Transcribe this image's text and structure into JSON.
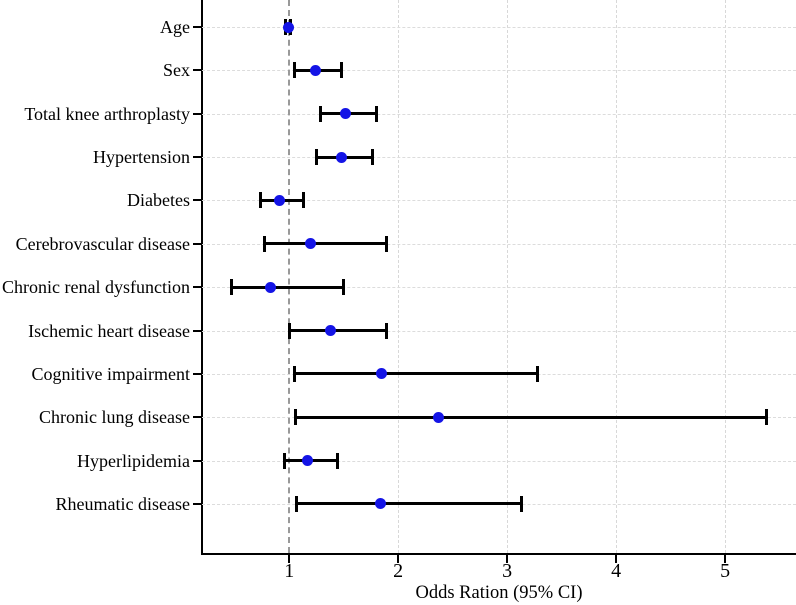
{
  "figure": {
    "background": "#ffffff"
  },
  "chart_data": {
    "type": "scatter",
    "subtype": "forest-plot",
    "title": "",
    "xlabel": "Odds Ration (95% CI)",
    "ylabel": "",
    "xlim": [
      0.2,
      5.65
    ],
    "x_ticks": [
      "1",
      "2",
      "3",
      "4",
      "5"
    ],
    "x_tick_values": [
      1,
      2,
      3,
      4,
      5
    ],
    "reference_line_x": 1,
    "grid": true,
    "legend": "none",
    "categories": [
      "Age",
      "Sex",
      "Total knee arthroplasty",
      "Hypertension",
      "Diabetes",
      "Cerebrovascular disease",
      "Chronic renal dysfunction",
      "Ischemic heart disease",
      "Cognitive impairment",
      "Chronic lung disease",
      "Hyperlipidemia",
      "Rheumatic disease"
    ],
    "series": [
      {
        "name": "Odds Ratio (95% CI)",
        "marker": "circle",
        "points": [
          {
            "label": "Age",
            "or": 0.99,
            "ci_low": 0.97,
            "ci_high": 1.01
          },
          {
            "label": "Sex",
            "or": 1.24,
            "ci_low": 1.05,
            "ci_high": 1.48
          },
          {
            "label": "Total knee arthroplasty",
            "or": 1.52,
            "ci_low": 1.29,
            "ci_high": 1.8
          },
          {
            "label": "Hypertension",
            "or": 1.48,
            "ci_low": 1.25,
            "ci_high": 1.76
          },
          {
            "label": "Diabetes",
            "or": 0.91,
            "ci_low": 0.74,
            "ci_high": 1.13
          },
          {
            "label": "Cerebrovascular disease",
            "or": 1.2,
            "ci_low": 0.77,
            "ci_high": 1.89
          },
          {
            "label": "Chronic renal dysfunction",
            "or": 0.83,
            "ci_low": 0.47,
            "ci_high": 1.5
          },
          {
            "label": "Ischemic heart disease",
            "or": 1.38,
            "ci_low": 1.0,
            "ci_high": 1.89
          },
          {
            "label": "Cognitive impairment",
            "or": 1.85,
            "ci_low": 1.05,
            "ci_high": 3.28
          },
          {
            "label": "Chronic lung disease",
            "or": 2.37,
            "ci_low": 1.06,
            "ci_high": 5.38
          },
          {
            "label": "Hyperlipidemia",
            "or": 1.17,
            "ci_low": 0.96,
            "ci_high": 1.44
          },
          {
            "label": "Rheumatic disease",
            "or": 1.84,
            "ci_low": 1.07,
            "ci_high": 3.13
          }
        ]
      }
    ],
    "colors": {
      "point": "#1414e6",
      "ci": "#000000",
      "axis": "#000000",
      "gridline": "#d8d8d8",
      "reference_line": "#999999",
      "text": "#000000"
    }
  }
}
